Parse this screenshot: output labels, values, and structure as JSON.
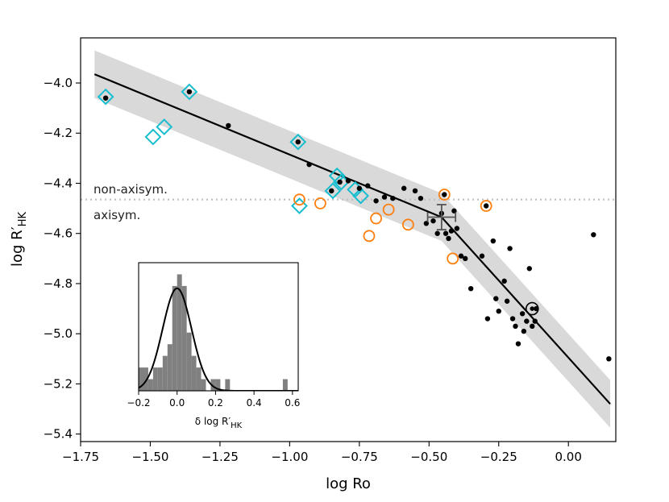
{
  "chart_data": {
    "type": "scatter",
    "xlabel": "log Ro",
    "ylabel_main": "log R′",
    "ylabel_sub": "HK",
    "xlim": [
      -1.75,
      0.17
    ],
    "ylim": [
      -5.43,
      -3.82
    ],
    "xticks": [
      -1.75,
      -1.5,
      -1.25,
      -1.0,
      -0.75,
      -0.5,
      -0.25,
      0.0
    ],
    "xtick_labels": [
      "−1.75",
      "−1.50",
      "−1.25",
      "−1.00",
      "−0.75",
      "−0.50",
      "−0.25",
      "0.00"
    ],
    "yticks": [
      -5.4,
      -5.2,
      -5.0,
      -4.8,
      -4.6,
      -4.4,
      -4.2,
      -4.0
    ],
    "ytick_labels": [
      "−5.4",
      "−5.2",
      "−5.0",
      "−4.8",
      "−4.6",
      "−4.4",
      "−4.2",
      "−4.0"
    ],
    "fit_line": {
      "x": [
        -1.7,
        -0.455,
        0.15
      ],
      "y": [
        -3.965,
        -4.535,
        -5.28
      ]
    },
    "fit_band_halfwidth": 0.095,
    "threshold": {
      "y": -4.465,
      "label_above": "non-axisym.",
      "label_below": "axisym."
    },
    "error_bar": {
      "x": -0.455,
      "y": -4.535,
      "xerr": 0.05,
      "yerr": 0.05
    },
    "sun": {
      "x": -0.13,
      "y": -4.9
    },
    "black_points": {
      "x": [
        -1.66,
        -1.36,
        -1.22,
        -0.97,
        -0.93,
        -0.85,
        -0.82,
        -0.79,
        -0.75,
        -0.72,
        -0.69,
        -0.66,
        -0.63,
        -0.59,
        -0.55,
        -0.53,
        -0.51,
        -0.485,
        -0.47,
        -0.455,
        -0.44,
        -0.43,
        -0.42,
        -0.41,
        -0.4,
        -0.385,
        -0.37,
        -0.35,
        -0.31,
        -0.29,
        -0.27,
        -0.26,
        -0.25,
        -0.23,
        -0.22,
        -0.21,
        -0.2,
        -0.19,
        -0.18,
        -0.165,
        -0.16,
        -0.15,
        -0.14,
        -0.13,
        -0.12,
        -0.115,
        0.09,
        0.145
      ],
      "y": [
        -4.06,
        -4.035,
        -4.17,
        -4.235,
        -4.325,
        -4.43,
        -4.395,
        -4.39,
        -4.42,
        -4.41,
        -4.47,
        -4.455,
        -4.46,
        -4.42,
        -4.43,
        -4.46,
        -4.56,
        -4.55,
        -4.6,
        -4.52,
        -4.6,
        -4.62,
        -4.59,
        -4.51,
        -4.58,
        -4.69,
        -4.7,
        -4.82,
        -4.69,
        -4.94,
        -4.63,
        -4.86,
        -4.91,
        -4.79,
        -4.87,
        -4.66,
        -4.94,
        -4.97,
        -5.04,
        -4.92,
        -4.99,
        -4.95,
        -4.74,
        -4.97,
        -4.95,
        -4.9,
        -4.605,
        -5.1
      ]
    },
    "diamond_points": {
      "x": [
        -1.66,
        -1.49,
        -1.45,
        -1.36,
        -0.97,
        -0.965,
        -0.845,
        -0.83,
        -0.815,
        -0.765,
        -0.745
      ],
      "y": [
        -4.055,
        -4.215,
        -4.175,
        -4.035,
        -4.235,
        -4.49,
        -4.43,
        -4.37,
        -4.395,
        -4.425,
        -4.45
      ]
    },
    "orange_points": {
      "x": [
        -0.965,
        -0.89,
        -0.715,
        -0.69,
        -0.645,
        -0.575,
        -0.445,
        -0.415,
        -0.295
      ],
      "y": [
        -4.465,
        -4.48,
        -4.61,
        -4.54,
        -4.505,
        -4.565,
        -4.445,
        -4.7,
        -4.49
      ]
    },
    "orange_filled": [
      false,
      false,
      false,
      false,
      false,
      false,
      true,
      false,
      true
    ],
    "inset": {
      "xlabel_main": "δ log R′",
      "xlabel_sub": "HK",
      "xlim": [
        -0.2,
        0.63
      ],
      "xticks": [
        -0.2,
        0.0,
        0.2,
        0.4,
        0.6
      ],
      "xtick_labels": [
        "−0.2",
        "0.0",
        "0.2",
        "0.4",
        "0.6"
      ],
      "bins": [
        -0.2,
        -0.15,
        -0.125,
        -0.1,
        -0.075,
        -0.05,
        -0.025,
        0.0,
        0.025,
        0.05,
        0.075,
        0.1,
        0.125,
        0.15,
        0.175,
        0.2,
        0.225,
        0.25,
        0.275,
        0.55,
        0.575
      ],
      "counts": [
        2,
        1,
        2,
        2,
        3,
        4,
        9,
        10,
        9,
        5,
        3,
        2,
        1,
        0,
        1,
        1,
        0,
        1,
        0,
        1
      ],
      "ymax": 11.0,
      "gauss_sigma": 0.075,
      "gauss_peak": 8.8
    }
  }
}
